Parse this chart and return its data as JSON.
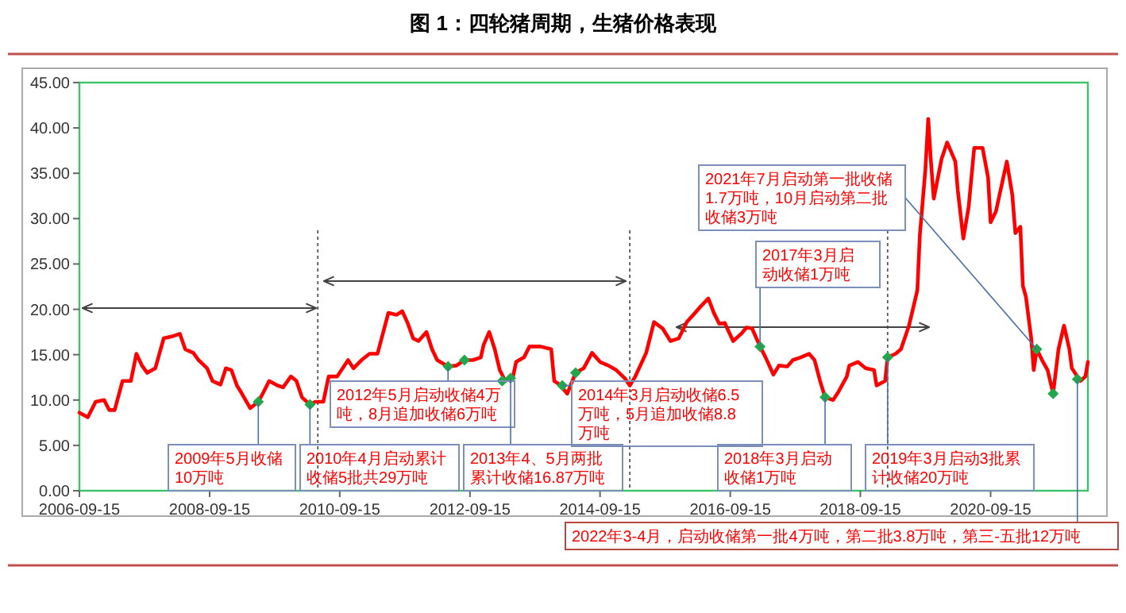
{
  "chart_data": {
    "type": "line",
    "title": "图 1：四轮猪周期，生猪价格表现",
    "xlim": [
      "2006-09-15",
      "2022-03-15"
    ],
    "xticks": [
      "2006-09-15",
      "2008-09-15",
      "2010-09-15",
      "2012-09-15",
      "2014-09-15",
      "2016-09-15",
      "2018-09-15",
      "2020-09-15"
    ],
    "ylim": [
      0,
      45
    ],
    "yticks": [
      {
        "value": 0,
        "label": "0.00"
      },
      {
        "value": 5,
        "label": "5.00"
      },
      {
        "value": 10,
        "label": "10.00"
      },
      {
        "value": 15,
        "label": "15.00"
      },
      {
        "value": 20,
        "label": "20.00"
      },
      {
        "value": 25,
        "label": "25.00"
      },
      {
        "value": 30,
        "label": "30.00"
      },
      {
        "value": 35,
        "label": "35.00"
      },
      {
        "value": 40,
        "label": "40.00"
      },
      {
        "value": 45,
        "label": "45.00"
      }
    ],
    "ref_lines": [
      {
        "axis": "x",
        "value": "2010-05-15",
        "color": "#555555",
        "line_style": "dotted"
      },
      {
        "axis": "x",
        "value": "2015-03-01",
        "color": "#555555",
        "line_style": "dotted"
      },
      {
        "axis": "x",
        "value": "2019-02-15",
        "color": "#555555",
        "line_style": "dotted"
      }
    ],
    "series": [
      {
        "color": "#ff0000",
        "marker": "none",
        "line_style": "solid",
        "x": [
          "2006-09-15",
          "2006-11-01",
          "2006-12-15",
          "2007-02-01",
          "2007-03-01",
          "2007-04-01",
          "2007-05-15",
          "2007-07-01",
          "2007-08-01",
          "2007-09-01",
          "2007-10-01",
          "2007-11-15",
          "2008-01-01",
          "2008-02-15",
          "2008-04-01",
          "2008-05-01",
          "2008-06-15",
          "2008-07-15",
          "2008-09-01",
          "2008-10-01",
          "2008-11-15",
          "2008-12-15",
          "2009-01-15",
          "2009-02-15",
          "2009-03-15",
          "2009-05-01",
          "2009-06-15",
          "2009-07-15",
          "2009-08-15",
          "2009-10-01",
          "2009-11-01",
          "2009-12-15",
          "2010-01-15",
          "2010-02-15",
          "2010-04-01",
          "2010-05-01",
          "2010-06-15",
          "2010-07-15",
          "2010-09-01",
          "2010-11-01",
          "2010-12-01",
          "2011-01-15",
          "2011-03-01",
          "2011-04-15",
          "2011-06-15",
          "2011-08-01",
          "2011-09-01",
          "2011-10-01",
          "2011-11-01",
          "2011-12-01",
          "2012-01-15",
          "2012-02-15",
          "2012-03-15",
          "2012-05-15",
          "2012-07-01",
          "2012-08-15",
          "2012-10-01",
          "2012-11-15",
          "2012-12-01",
          "2013-01-01",
          "2013-02-01",
          "2013-03-01",
          "2013-04-01",
          "2013-05-15",
          "2013-06-01",
          "2013-07-15",
          "2013-08-15",
          "2013-10-15",
          "2013-12-15",
          "2014-01-01",
          "2014-02-01",
          "2014-03-15",
          "2014-05-01",
          "2014-06-15",
          "2014-08-01",
          "2014-09-15",
          "2014-11-01",
          "2014-12-15",
          "2015-02-01",
          "2015-03-01",
          "2015-04-01",
          "2015-06-01",
          "2015-07-15",
          "2015-09-01",
          "2015-10-15",
          "2015-12-01",
          "2016-01-15",
          "2016-03-01",
          "2016-04-01",
          "2016-05-15",
          "2016-06-15",
          "2016-07-15",
          "2016-08-15",
          "2016-10-01",
          "2016-11-15",
          "2016-12-15",
          "2017-01-15",
          "2017-03-01",
          "2017-04-01",
          "2017-05-15",
          "2017-06-15",
          "2017-08-01",
          "2017-09-01",
          "2017-10-15",
          "2017-12-01",
          "2018-01-01",
          "2018-02-01",
          "2018-03-01",
          "2018-04-15",
          "2018-05-15",
          "2018-07-01",
          "2018-07-15",
          "2018-09-01",
          "2018-10-15",
          "2018-12-01",
          "2018-12-15",
          "2019-02-01",
          "2019-02-15",
          "2019-04-01",
          "2019-05-01",
          "2019-06-15",
          "2019-08-01",
          "2019-08-15",
          "2019-09-15",
          "2019-10-01",
          "2019-10-15",
          "2019-11-01",
          "2019-12-01",
          "2019-12-15",
          "2020-01-15",
          "2020-03-01",
          "2020-03-15",
          "2020-04-15",
          "2020-05-15",
          "2020-06-15",
          "2020-08-01",
          "2020-09-01",
          "2020-09-15",
          "2020-10-15",
          "2020-11-15",
          "2020-12-15",
          "2021-01-15",
          "2021-02-01",
          "2021-03-01",
          "2021-03-15",
          "2021-04-01",
          "2021-05-01",
          "2021-05-15",
          "2021-06-01",
          "2021-07-01",
          "2021-08-01",
          "2021-09-01",
          "2021-10-01",
          "2021-11-01",
          "2021-12-01",
          "2021-12-15",
          "2022-02-01",
          "2022-03-01",
          "2022-03-15"
        ],
        "values": [
          8.6,
          8.1,
          9.8,
          10.0,
          8.9,
          8.9,
          12.1,
          12.1,
          15.1,
          13.8,
          13.0,
          13.5,
          16.8,
          17.0,
          17.3,
          15.6,
          15.2,
          14.4,
          13.5,
          12.1,
          11.7,
          13.5,
          13.3,
          11.6,
          10.7,
          9.1,
          9.8,
          10.9,
          12.1,
          11.6,
          11.4,
          12.6,
          12.1,
          10.3,
          9.5,
          9.8,
          9.8,
          12.6,
          12.6,
          14.4,
          13.5,
          14.4,
          15.1,
          15.1,
          19.6,
          19.4,
          19.8,
          18.5,
          16.8,
          16.5,
          17.5,
          15.6,
          14.4,
          13.7,
          13.8,
          14.4,
          14.4,
          14.7,
          16.1,
          17.5,
          15.6,
          13.3,
          12.1,
          12.6,
          14.2,
          14.7,
          15.9,
          15.9,
          15.6,
          12.1,
          11.7,
          10.7,
          13.0,
          13.5,
          15.2,
          14.2,
          13.8,
          13.3,
          12.4,
          11.6,
          12.6,
          15.2,
          18.6,
          17.9,
          16.5,
          16.8,
          18.6,
          19.6,
          20.3,
          21.2,
          19.6,
          18.4,
          18.5,
          16.5,
          17.3,
          18.0,
          17.9,
          15.9,
          14.7,
          12.8,
          13.8,
          13.7,
          14.4,
          14.7,
          15.1,
          14.4,
          12.1,
          10.3,
          10.0,
          10.9,
          12.6,
          13.8,
          14.2,
          13.5,
          13.3,
          11.6,
          12.1,
          14.7,
          15.1,
          15.6,
          18.2,
          22.1,
          28.2,
          35.4,
          41.0,
          36.6,
          32.2,
          35.2,
          36.6,
          38.4,
          36.3,
          33.1,
          27.8,
          31.3,
          37.8,
          37.8,
          34.5,
          29.6,
          30.8,
          33.6,
          36.3,
          32.6,
          28.4,
          29.1,
          22.6,
          21.4,
          16.8,
          13.3,
          15.6,
          14.4,
          13.3,
          10.7,
          15.6,
          18.2,
          15.6,
          13.5,
          12.1,
          12.6,
          14.2
        ]
      },
      {
        "type": "scatter",
        "color": "#22a84a",
        "marker": "diamond",
        "x": [
          "2009-06-15",
          "2010-04-01",
          "2012-05-15",
          "2012-08-15",
          "2013-03-15",
          "2013-05-01",
          "2014-02-15",
          "2014-05-01",
          "2017-03-01",
          "2018-03-01",
          "2019-02-15",
          "2021-06-01",
          "2021-09-01",
          "2022-01-15"
        ],
        "values": [
          9.8,
          9.5,
          13.7,
          14.4,
          12.1,
          12.4,
          11.6,
          13.0,
          15.9,
          10.3,
          14.7,
          15.6,
          10.7,
          12.3
        ]
      }
    ],
    "annotations": [
      {
        "text": "2009年5月收储10万吨",
        "x": "2009-06-15",
        "y": 9.8
      },
      {
        "text": "2010年4月启动累计收储5批共29万吨",
        "x": "2010-04-01",
        "y": 9.5
      },
      {
        "text": "2012年5月启动收储4万吨，8月追加收储6万吨",
        "x": "2012-05-15",
        "y": 13.7
      },
      {
        "text": "2013年4、5月两批累计收储16.87万吨",
        "x": "2013-05-01",
        "y": 12.4
      },
      {
        "text": "2014年3月启动收储6.5万吨，5月追加收储8.8万吨",
        "x": "2014-02-15",
        "y": 11.6
      },
      {
        "text": "2017年3月启动收储1万吨",
        "x": "2017-03-01",
        "y": 15.9
      },
      {
        "text": "2018年3月启动收储1万吨",
        "x": "2018-03-01",
        "y": 10.3
      },
      {
        "text": "2019年3月启动3批累计收储20万吨",
        "x": "2019-02-15",
        "y": 14.7
      },
      {
        "text": "2021年7月启动第一批收储1.7万吨，10月启动第二批收储3万吨",
        "x": "2021-06-01",
        "y": 15.6
      },
      {
        "text": "2022年3-4月，启动收储第一批4万吨，第二批3.8万吨，第三-五批12万吨",
        "x": "2022-01-15",
        "y": 12.3
      }
    ]
  }
}
